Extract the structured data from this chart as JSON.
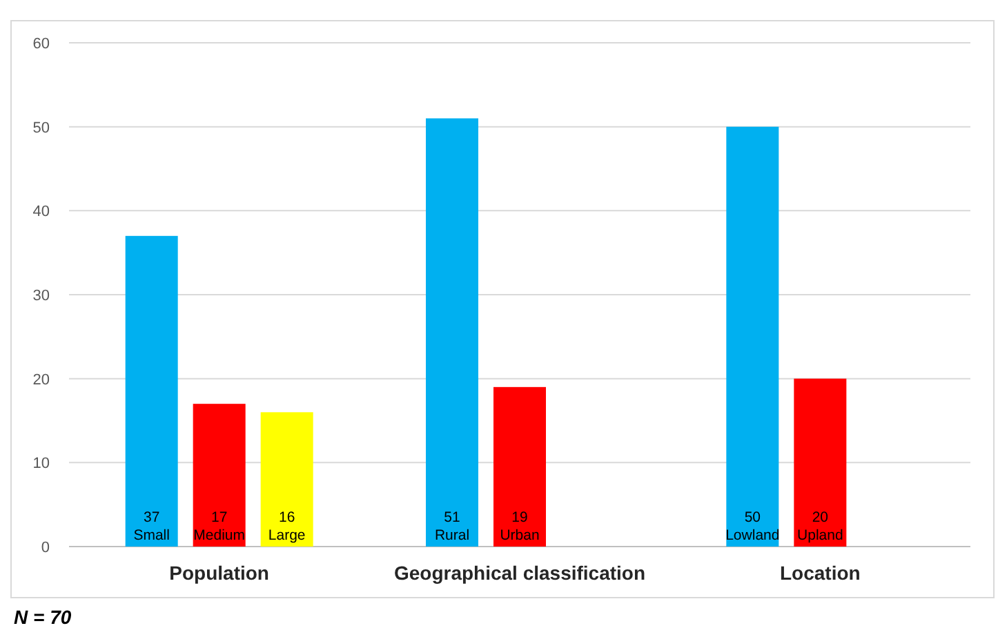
{
  "chart_data": {
    "type": "bar",
    "categories": [
      "Population",
      "Geographical classification",
      "Location"
    ],
    "series": [
      {
        "color": "#00b0f0",
        "values": [
          37,
          51,
          50
        ],
        "value_labels": [
          "37\nSmall",
          "51\nRural",
          "50\nLowland"
        ]
      },
      {
        "color": "#ff0000",
        "values": [
          17,
          19,
          20
        ],
        "value_labels": [
          "17\nMedium",
          "19\nUrban",
          "20\nUpland"
        ]
      },
      {
        "color": "#ffff00",
        "values": [
          16,
          null,
          null
        ],
        "value_labels": [
          "16\nLarge",
          null,
          null
        ]
      }
    ],
    "ylim": [
      0,
      60
    ],
    "yticks": [
      0,
      10,
      20,
      30,
      40,
      50,
      60
    ],
    "grid": "y",
    "annotations": [
      "N = 70"
    ]
  }
}
